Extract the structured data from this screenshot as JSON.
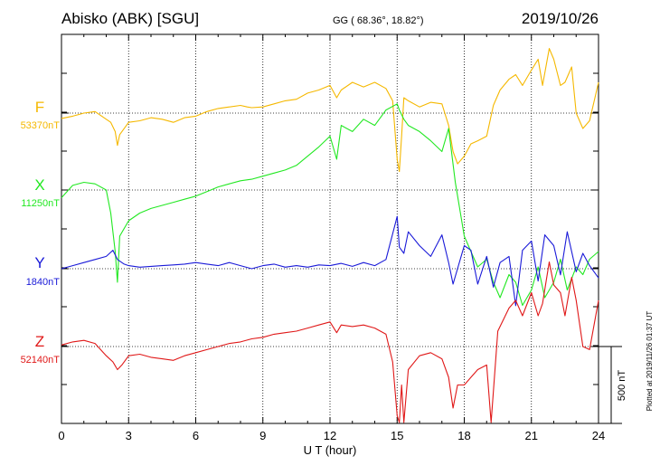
{
  "header": {
    "station": "Abisko (ABK)  [SGU]",
    "coords": "GG ( 68.36°,  18.82°)",
    "date": "2019/10/26"
  },
  "plotted_note": "Plotted at 2019/11/26 01:37 UT",
  "scale_bar_label": "500 nT",
  "colors": {
    "F": "#f5b800",
    "X": "#22e822",
    "Y": "#1a1ad8",
    "Z": "#e01818",
    "axis": "#000000"
  },
  "chart_data": {
    "type": "line",
    "xlabel": "U T (hour)",
    "xlim": [
      0,
      24
    ],
    "x_ticks": [
      0,
      3,
      6,
      9,
      12,
      15,
      18,
      21,
      24
    ],
    "x_tick_labels": [
      "0",
      "3",
      "6",
      "9",
      "12",
      "15",
      "18",
      "21",
      "24"
    ],
    "scale_nT_per_bar": 500,
    "series": [
      {
        "name": "F",
        "baseline_label": "53370nT",
        "baseline_nT": 53370,
        "x": [
          0,
          0.5,
          1,
          1.5,
          2,
          2.2,
          2.4,
          2.5,
          2.6,
          3,
          3.5,
          4,
          4.5,
          5,
          5.5,
          6,
          6.5,
          7,
          7.5,
          8,
          8.3,
          8.5,
          9,
          9.5,
          10,
          10.5,
          11,
          11.5,
          12,
          12.3,
          12.5,
          13,
          13.5,
          14,
          14.5,
          14.8,
          15,
          15.1,
          15.2,
          15.3,
          15.5,
          16,
          16.5,
          17,
          17.3,
          17.5,
          17.7,
          18,
          18.3,
          18.6,
          19,
          19.3,
          19.6,
          20,
          20.3,
          20.6,
          21,
          21.3,
          21.5,
          21.8,
          22,
          22.3,
          22.5,
          22.8,
          23,
          23.3,
          23.6,
          24
        ],
        "values": [
          -35,
          -20,
          0,
          10,
          -40,
          -60,
          -120,
          -210,
          -140,
          -60,
          -50,
          -30,
          -40,
          -60,
          -30,
          -20,
          10,
          30,
          40,
          50,
          40,
          35,
          40,
          60,
          80,
          90,
          130,
          150,
          180,
          100,
          150,
          200,
          170,
          200,
          160,
          80,
          -300,
          -380,
          -150,
          100,
          80,
          40,
          70,
          60,
          -80,
          -250,
          -330,
          -280,
          -200,
          -180,
          -150,
          50,
          150,
          220,
          250,
          180,
          280,
          350,
          180,
          420,
          350,
          180,
          200,
          300,
          0,
          -100,
          -50,
          200
        ]
      },
      {
        "name": "X",
        "baseline_label": "11250nT",
        "baseline_nT": 11250,
        "x": [
          0,
          0.5,
          1,
          1.5,
          2,
          2.2,
          2.4,
          2.5,
          2.6,
          3,
          3.5,
          4,
          4.5,
          5,
          5.5,
          6,
          6.5,
          7,
          7.5,
          8,
          8.5,
          9,
          9.5,
          10,
          10.5,
          11,
          11.5,
          12,
          12.3,
          12.5,
          13,
          13.5,
          14,
          14.5,
          15,
          15.1,
          15.3,
          15.5,
          16,
          16.5,
          17,
          17.3,
          17.6,
          18,
          18.3,
          18.6,
          19,
          19.3,
          19.6,
          20,
          20.3,
          20.6,
          21,
          21.3,
          21.6,
          22,
          22.3,
          22.6,
          23,
          23.3,
          23.6,
          24
        ],
        "values": [
          -50,
          30,
          50,
          40,
          0,
          -150,
          -400,
          -600,
          -300,
          -200,
          -150,
          -120,
          -100,
          -80,
          -60,
          -40,
          -10,
          20,
          40,
          60,
          70,
          90,
          110,
          130,
          160,
          220,
          280,
          350,
          200,
          420,
          380,
          460,
          420,
          520,
          560,
          520,
          460,
          420,
          380,
          320,
          250,
          400,
          50,
          -300,
          -400,
          -500,
          -450,
          -600,
          -700,
          -550,
          -600,
          -750,
          -650,
          -500,
          -700,
          -600,
          -450,
          -650,
          -500,
          -550,
          -450,
          -400
        ]
      },
      {
        "name": "Y",
        "baseline_label": "1840nT",
        "baseline_nT": 1840,
        "x": [
          0,
          0.5,
          1,
          1.5,
          2,
          2.3,
          2.5,
          2.8,
          3,
          3.5,
          4,
          4.5,
          5,
          5.5,
          6,
          6.5,
          7,
          7.5,
          8,
          8.5,
          9,
          9.5,
          10,
          10.5,
          11,
          11.5,
          12,
          12.5,
          13,
          13.5,
          14,
          14.5,
          15,
          15.1,
          15.3,
          15.5,
          16,
          16.5,
          17,
          17.3,
          17.5,
          18,
          18.3,
          18.6,
          19,
          19.3,
          19.6,
          20,
          20.3,
          20.6,
          21,
          21.3,
          21.6,
          22,
          22.3,
          22.6,
          23,
          23.3,
          23.6,
          24
        ],
        "values": [
          0,
          20,
          40,
          60,
          80,
          120,
          60,
          30,
          20,
          10,
          15,
          20,
          25,
          30,
          40,
          30,
          20,
          40,
          20,
          0,
          20,
          30,
          10,
          20,
          10,
          25,
          20,
          35,
          15,
          40,
          20,
          60,
          340,
          140,
          100,
          240,
          150,
          80,
          220,
          40,
          -100,
          150,
          120,
          -100,
          80,
          -120,
          40,
          80,
          -240,
          120,
          180,
          -80,
          220,
          150,
          -40,
          240,
          -20,
          100,
          20,
          -60
        ]
      },
      {
        "name": "Z",
        "baseline_label": "52140nT",
        "baseline_nT": 52140,
        "x": [
          0,
          0.5,
          1,
          1.5,
          2,
          2.3,
          2.5,
          2.7,
          3,
          3.5,
          4,
          4.5,
          5,
          5.5,
          6,
          6.5,
          7,
          7.5,
          8,
          8.5,
          9,
          9.5,
          10,
          10.5,
          11,
          11.5,
          12,
          12.3,
          12.5,
          13,
          13.5,
          14,
          14.5,
          14.8,
          15,
          15.1,
          15.2,
          15.3,
          15.5,
          16,
          16.5,
          17,
          17.3,
          17.5,
          17.7,
          18,
          18.3,
          18.6,
          19,
          19.2,
          19.5,
          20,
          20.3,
          20.6,
          21,
          21.3,
          21.5,
          21.8,
          22,
          22.3,
          22.5,
          22.8,
          23,
          23.3,
          23.6,
          24
        ],
        "values": [
          10,
          30,
          40,
          20,
          -60,
          -100,
          -150,
          -120,
          -60,
          -50,
          -70,
          -80,
          -90,
          -60,
          -40,
          -20,
          0,
          20,
          30,
          50,
          60,
          80,
          90,
          100,
          120,
          140,
          160,
          90,
          140,
          130,
          140,
          120,
          80,
          -100,
          -450,
          -500,
          -250,
          -600,
          -150,
          -60,
          -40,
          -80,
          -200,
          -400,
          -250,
          -250,
          -200,
          -150,
          -120,
          -500,
          100,
          250,
          300,
          200,
          350,
          200,
          280,
          550,
          400,
          350,
          200,
          450,
          300,
          0,
          -20,
          300
        ]
      }
    ]
  }
}
